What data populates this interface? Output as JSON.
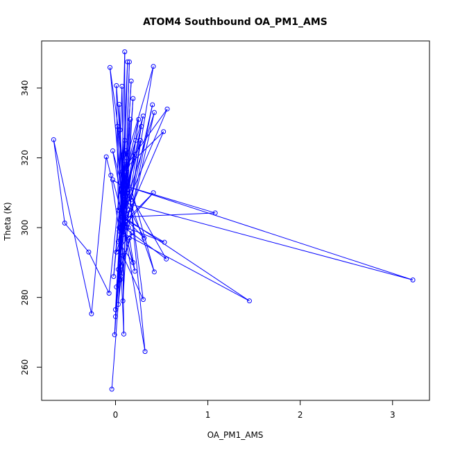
{
  "chart_data": {
    "type": "line",
    "title": "ATOM4 Southbound OA_PM1_AMS",
    "xlabel": "OA_PM1_AMS",
    "ylabel": "Theta (K)",
    "xlim": [
      -0.8,
      3.4
    ],
    "ylim": [
      250.5,
      353.5
    ],
    "x_ticks": [
      0,
      1,
      2,
      3
    ],
    "x_tick_labels": [
      "0",
      "1",
      "2",
      "3"
    ],
    "y_ticks": [
      260,
      280,
      300,
      320,
      340
    ],
    "y_tick_labels": [
      "260",
      "280",
      "300",
      "320",
      "340"
    ],
    "grid": false,
    "legend": "none",
    "color": "#0000ff",
    "marker": "open-circle",
    "series": [
      {
        "values": [
          [
            -0.04,
            253.7
          ],
          [
            0.05,
            285.0
          ],
          [
            0.09,
            321.0
          ],
          [
            -0.02,
            286.0
          ],
          [
            0.11,
            322.0
          ],
          [
            0.32,
            264.5
          ],
          [
            0.06,
            305.0
          ],
          [
            0.13,
            318.0
          ],
          [
            -0.01,
            269.3
          ],
          [
            0.07,
            310.0
          ],
          [
            0.09,
            269.5
          ],
          [
            0.04,
            300.0
          ],
          [
            0.1,
            318.0
          ],
          [
            0.0,
            274.5
          ],
          [
            0.09,
            311.0
          ],
          [
            0.03,
            278.0
          ],
          [
            0.14,
            305.0
          ],
          [
            0.08,
            279.0
          ],
          [
            0.12,
            312.0
          ],
          [
            0.01,
            283.0
          ],
          [
            0.06,
            286.0
          ],
          [
            0.15,
            297.0
          ],
          [
            0.21,
            287.5
          ],
          [
            0.08,
            301.0
          ],
          [
            0.19,
            290.0
          ],
          [
            0.03,
            296.0
          ],
          [
            0.13,
            313.0
          ],
          [
            0.0,
            276.5
          ],
          [
            0.1,
            325.0
          ],
          [
            -0.07,
            281.2
          ],
          [
            -0.29,
            293.0
          ],
          [
            -0.55,
            301.3
          ],
          [
            -0.67,
            325.2
          ],
          [
            -0.26,
            275.3
          ],
          [
            -0.1,
            320.3
          ],
          [
            -0.05,
            315.0
          ],
          [
            0.08,
            292.0
          ],
          [
            0.3,
            279.4
          ],
          [
            0.12,
            316.0
          ],
          [
            0.42,
            287.3
          ],
          [
            0.1,
            312.0
          ],
          [
            0.55,
            291.0
          ],
          [
            0.07,
            300.5
          ],
          [
            0.53,
            295.8
          ],
          [
            0.06,
            303.0
          ],
          [
            1.08,
            304.2
          ],
          [
            0.1,
            312.0
          ],
          [
            3.22,
            285.0
          ],
          [
            0.12,
            307.0
          ],
          [
            0.31,
            297.0
          ],
          [
            0.09,
            303.0
          ],
          [
            1.45,
            279.0
          ],
          [
            0.04,
            299.0
          ],
          [
            0.41,
            310.0
          ],
          [
            0.11,
            302.0
          ],
          [
            0.19,
            337.0
          ],
          [
            0.09,
            301.0
          ],
          [
            0.52,
            327.5
          ],
          [
            0.07,
            316.0
          ],
          [
            0.56,
            334.0
          ],
          [
            0.08,
            304.0
          ],
          [
            0.42,
            333.0
          ],
          [
            0.14,
            300.0
          ],
          [
            0.4,
            335.2
          ],
          [
            0.17,
            308.0
          ],
          [
            0.41,
            346.2
          ],
          [
            0.12,
            320.0
          ],
          [
            0.15,
            347.5
          ],
          [
            0.1,
            305.0
          ],
          [
            0.1,
            350.4
          ],
          [
            0.06,
            304.0
          ],
          [
            0.13,
            347.5
          ],
          [
            0.09,
            309.0
          ],
          [
            0.07,
            340.5
          ],
          [
            0.03,
            305.0
          ],
          [
            0.01,
            340.7
          ],
          [
            0.1,
            308.0
          ],
          [
            0.17,
            342.0
          ],
          [
            0.11,
            313.0
          ],
          [
            -0.06,
            345.9
          ],
          [
            0.09,
            302.0
          ],
          [
            0.04,
            335.3
          ],
          [
            0.06,
            311.0
          ],
          [
            0.22,
            325.0
          ],
          [
            0.09,
            306.0
          ],
          [
            0.28,
            329.0
          ],
          [
            0.08,
            298.0
          ],
          [
            0.25,
            331.0
          ],
          [
            0.1,
            314.0
          ],
          [
            0.3,
            332.0
          ],
          [
            0.07,
            303.0
          ],
          [
            0.02,
            329.0
          ],
          [
            0.11,
            309.0
          ],
          [
            0.16,
            331.0
          ],
          [
            0.06,
            305.0
          ],
          [
            0.27,
            325.0
          ],
          [
            0.12,
            300.0
          ],
          [
            -0.03,
            322.0
          ],
          [
            0.09,
            310.0
          ],
          [
            0.05,
            328.0
          ],
          [
            0.08,
            306.0
          ],
          [
            0.21,
            321.0
          ],
          [
            0.13,
            311.0
          ],
          [
            -0.03,
            313.7
          ],
          [
            0.1,
            301.0
          ],
          [
            0.01,
            293.0
          ],
          [
            0.18,
            298.5
          ],
          [
            0.06,
            289.0
          ],
          [
            0.11,
            304.0
          ],
          [
            0.03,
            288.0
          ]
        ]
      }
    ]
  }
}
